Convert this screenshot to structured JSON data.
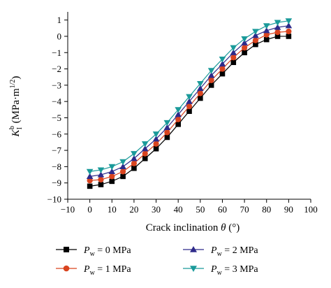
{
  "chart_data": {
    "type": "line",
    "xlabel": "Crack inclination θ (°)",
    "ylabel": "K_I^b (MPa·m^1/2)",
    "xlim": [
      -10,
      100
    ],
    "ylim": [
      -10,
      1.5
    ],
    "xticks": [
      -10,
      0,
      10,
      20,
      30,
      40,
      50,
      60,
      70,
      80,
      90,
      100
    ],
    "yticks": [
      1,
      0,
      -1,
      -2,
      -3,
      -4,
      -5,
      -6,
      -7,
      -8,
      -9,
      -10
    ],
    "x": [
      0,
      5,
      10,
      15,
      20,
      25,
      30,
      35,
      40,
      45,
      50,
      55,
      60,
      65,
      70,
      75,
      80,
      85,
      90
    ],
    "series": [
      {
        "name": "P_w = 0 MPa",
        "legend_var": "P",
        "legend_sub": "w",
        "legend_rest": " = 0 MPa",
        "color": "#000000",
        "marker": "square",
        "values": [
          -9.2,
          -9.1,
          -8.9,
          -8.6,
          -8.1,
          -7.5,
          -6.9,
          -6.2,
          -5.4,
          -4.6,
          -3.8,
          -3.0,
          -2.3,
          -1.6,
          -1.0,
          -0.5,
          -0.2,
          0.0,
          0.0
        ]
      },
      {
        "name": "P_w = 1 MPa",
        "legend_var": "P",
        "legend_sub": "w",
        "legend_rest": " = 1 MPa",
        "color": "#d9441f",
        "marker": "circle",
        "values": [
          -8.85,
          -8.8,
          -8.6,
          -8.3,
          -7.8,
          -7.2,
          -6.6,
          -5.9,
          -5.1,
          -4.3,
          -3.5,
          -2.7,
          -2.0,
          -1.3,
          -0.7,
          -0.25,
          0.1,
          0.25,
          0.3
        ]
      },
      {
        "name": "P_w = 2 MPa",
        "legend_var": "P",
        "legend_sub": "w",
        "legend_rest": " = 2 MPa",
        "color": "#2e2a8a",
        "marker": "triangle-up",
        "values": [
          -8.6,
          -8.5,
          -8.3,
          -8.0,
          -7.5,
          -6.9,
          -6.3,
          -5.6,
          -4.8,
          -4.0,
          -3.2,
          -2.4,
          -1.7,
          -1.0,
          -0.4,
          0.05,
          0.35,
          0.55,
          0.65
        ]
      },
      {
        "name": "P_w = 3 MPa",
        "legend_var": "P",
        "legend_sub": "w",
        "legend_rest": " = 3 MPa",
        "color": "#1a9a9a",
        "marker": "triangle-down",
        "values": [
          -8.3,
          -8.2,
          -8.0,
          -7.7,
          -7.2,
          -6.6,
          -6.0,
          -5.3,
          -4.5,
          -3.7,
          -2.9,
          -2.1,
          -1.4,
          -0.7,
          -0.15,
          0.3,
          0.65,
          0.85,
          0.95
        ]
      }
    ]
  }
}
